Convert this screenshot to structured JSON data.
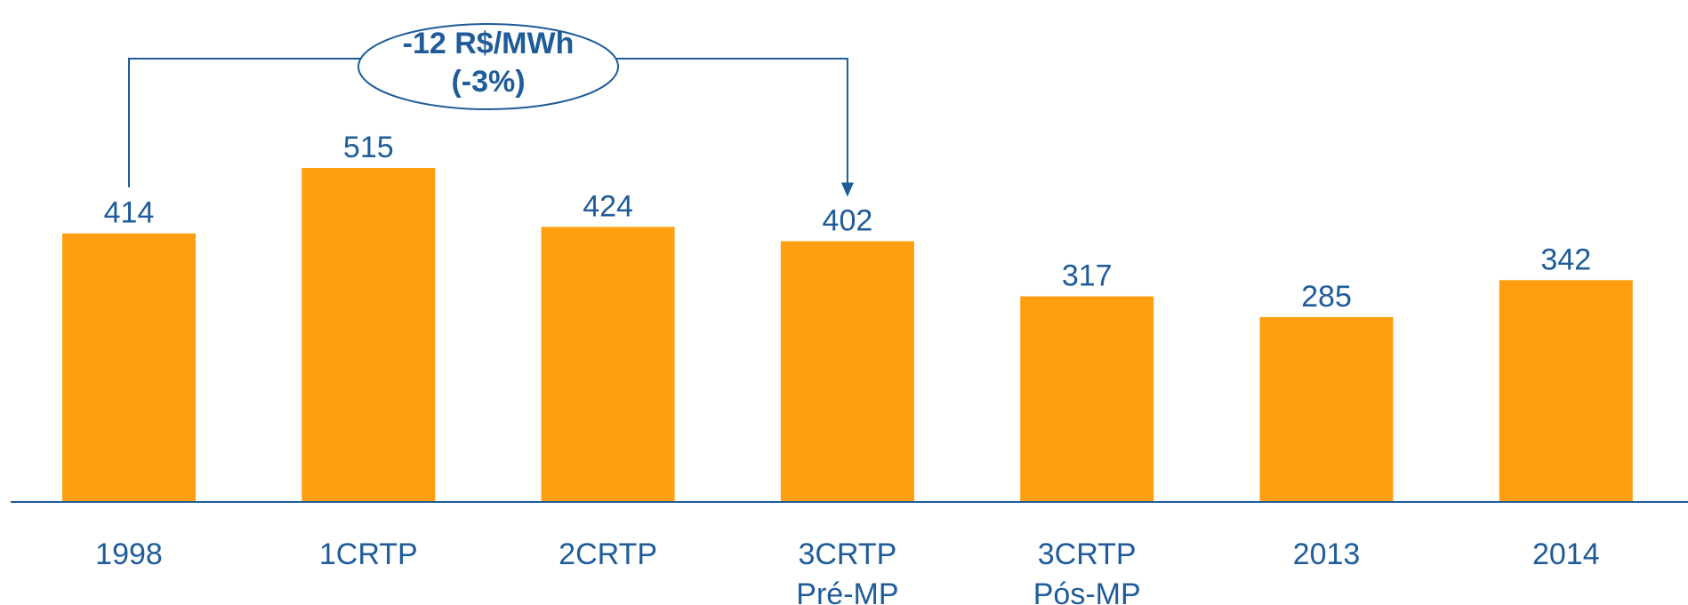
{
  "chart_data": {
    "type": "bar",
    "categories": [
      [
        "1998"
      ],
      [
        "1CRTP"
      ],
      [
        "2CRTP"
      ],
      [
        "3CRTP",
        "Pré-MP"
      ],
      [
        "3CRTP",
        "Pós-MP"
      ],
      [
        "2013"
      ],
      [
        "2014"
      ]
    ],
    "values": [
      414,
      515,
      424,
      402,
      317,
      285,
      342
    ],
    "data_labels": [
      "414",
      "515",
      "424",
      "402",
      "317",
      "285",
      "342"
    ],
    "ylim": [
      0,
      515
    ],
    "grid": false,
    "legend": "none",
    "annotation": {
      "line1": "-12 R$/MWh",
      "line2": "(-3%)",
      "from_category": "1998",
      "to_category": "3CRTP Pré-MP"
    }
  },
  "colors": {
    "bar": "#FF9E0F",
    "text": "#1f5c99",
    "axis": "#1f5c99",
    "annotation": "#1f5c99"
  }
}
